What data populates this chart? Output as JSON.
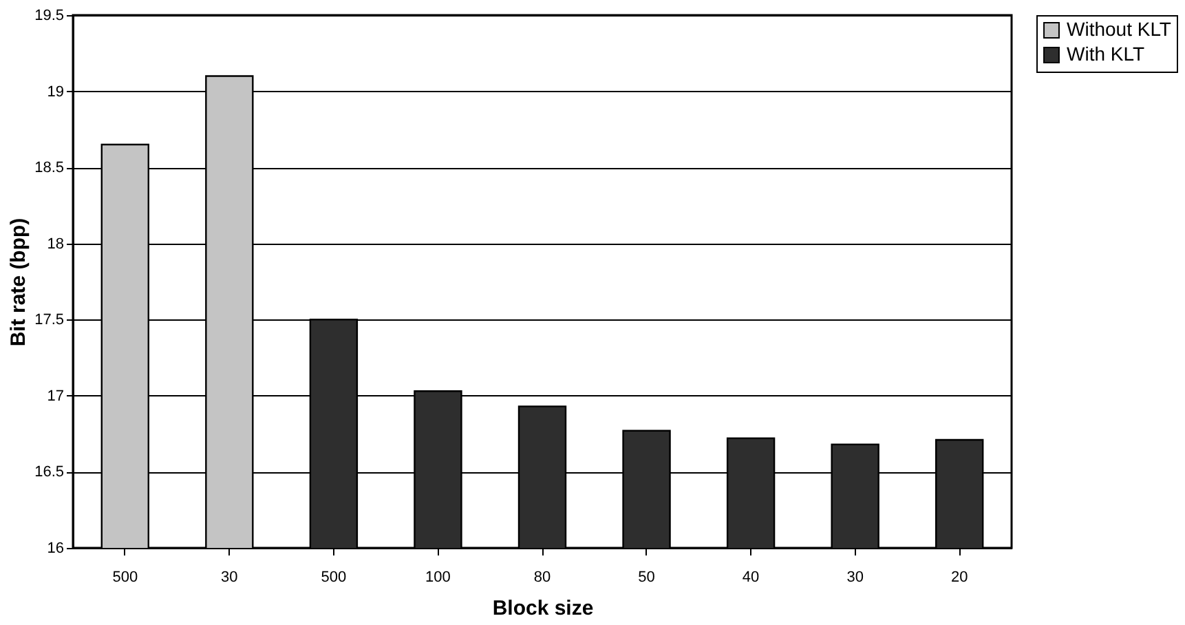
{
  "chart_data": {
    "type": "bar",
    "xlabel": "Block size",
    "ylabel": "Bit rate (bpp)",
    "categories": [
      "500",
      "30",
      "500",
      "100",
      "80",
      "50",
      "40",
      "30",
      "20"
    ],
    "series": [
      {
        "name": "Without KLT",
        "color": "#c4c4c4",
        "values": [
          18.65,
          19.1,
          null,
          null,
          null,
          null,
          null,
          null,
          null
        ]
      },
      {
        "name": "With KLT",
        "color": "#2e2e2e",
        "values": [
          null,
          null,
          17.5,
          17.03,
          16.93,
          16.77,
          16.72,
          16.68,
          16.71
        ]
      }
    ],
    "ylim": [
      16,
      19.5
    ],
    "yticks": [
      16,
      16.5,
      17,
      17.5,
      18,
      18.5,
      19,
      19.5
    ],
    "grid": "y",
    "legend": "right"
  }
}
